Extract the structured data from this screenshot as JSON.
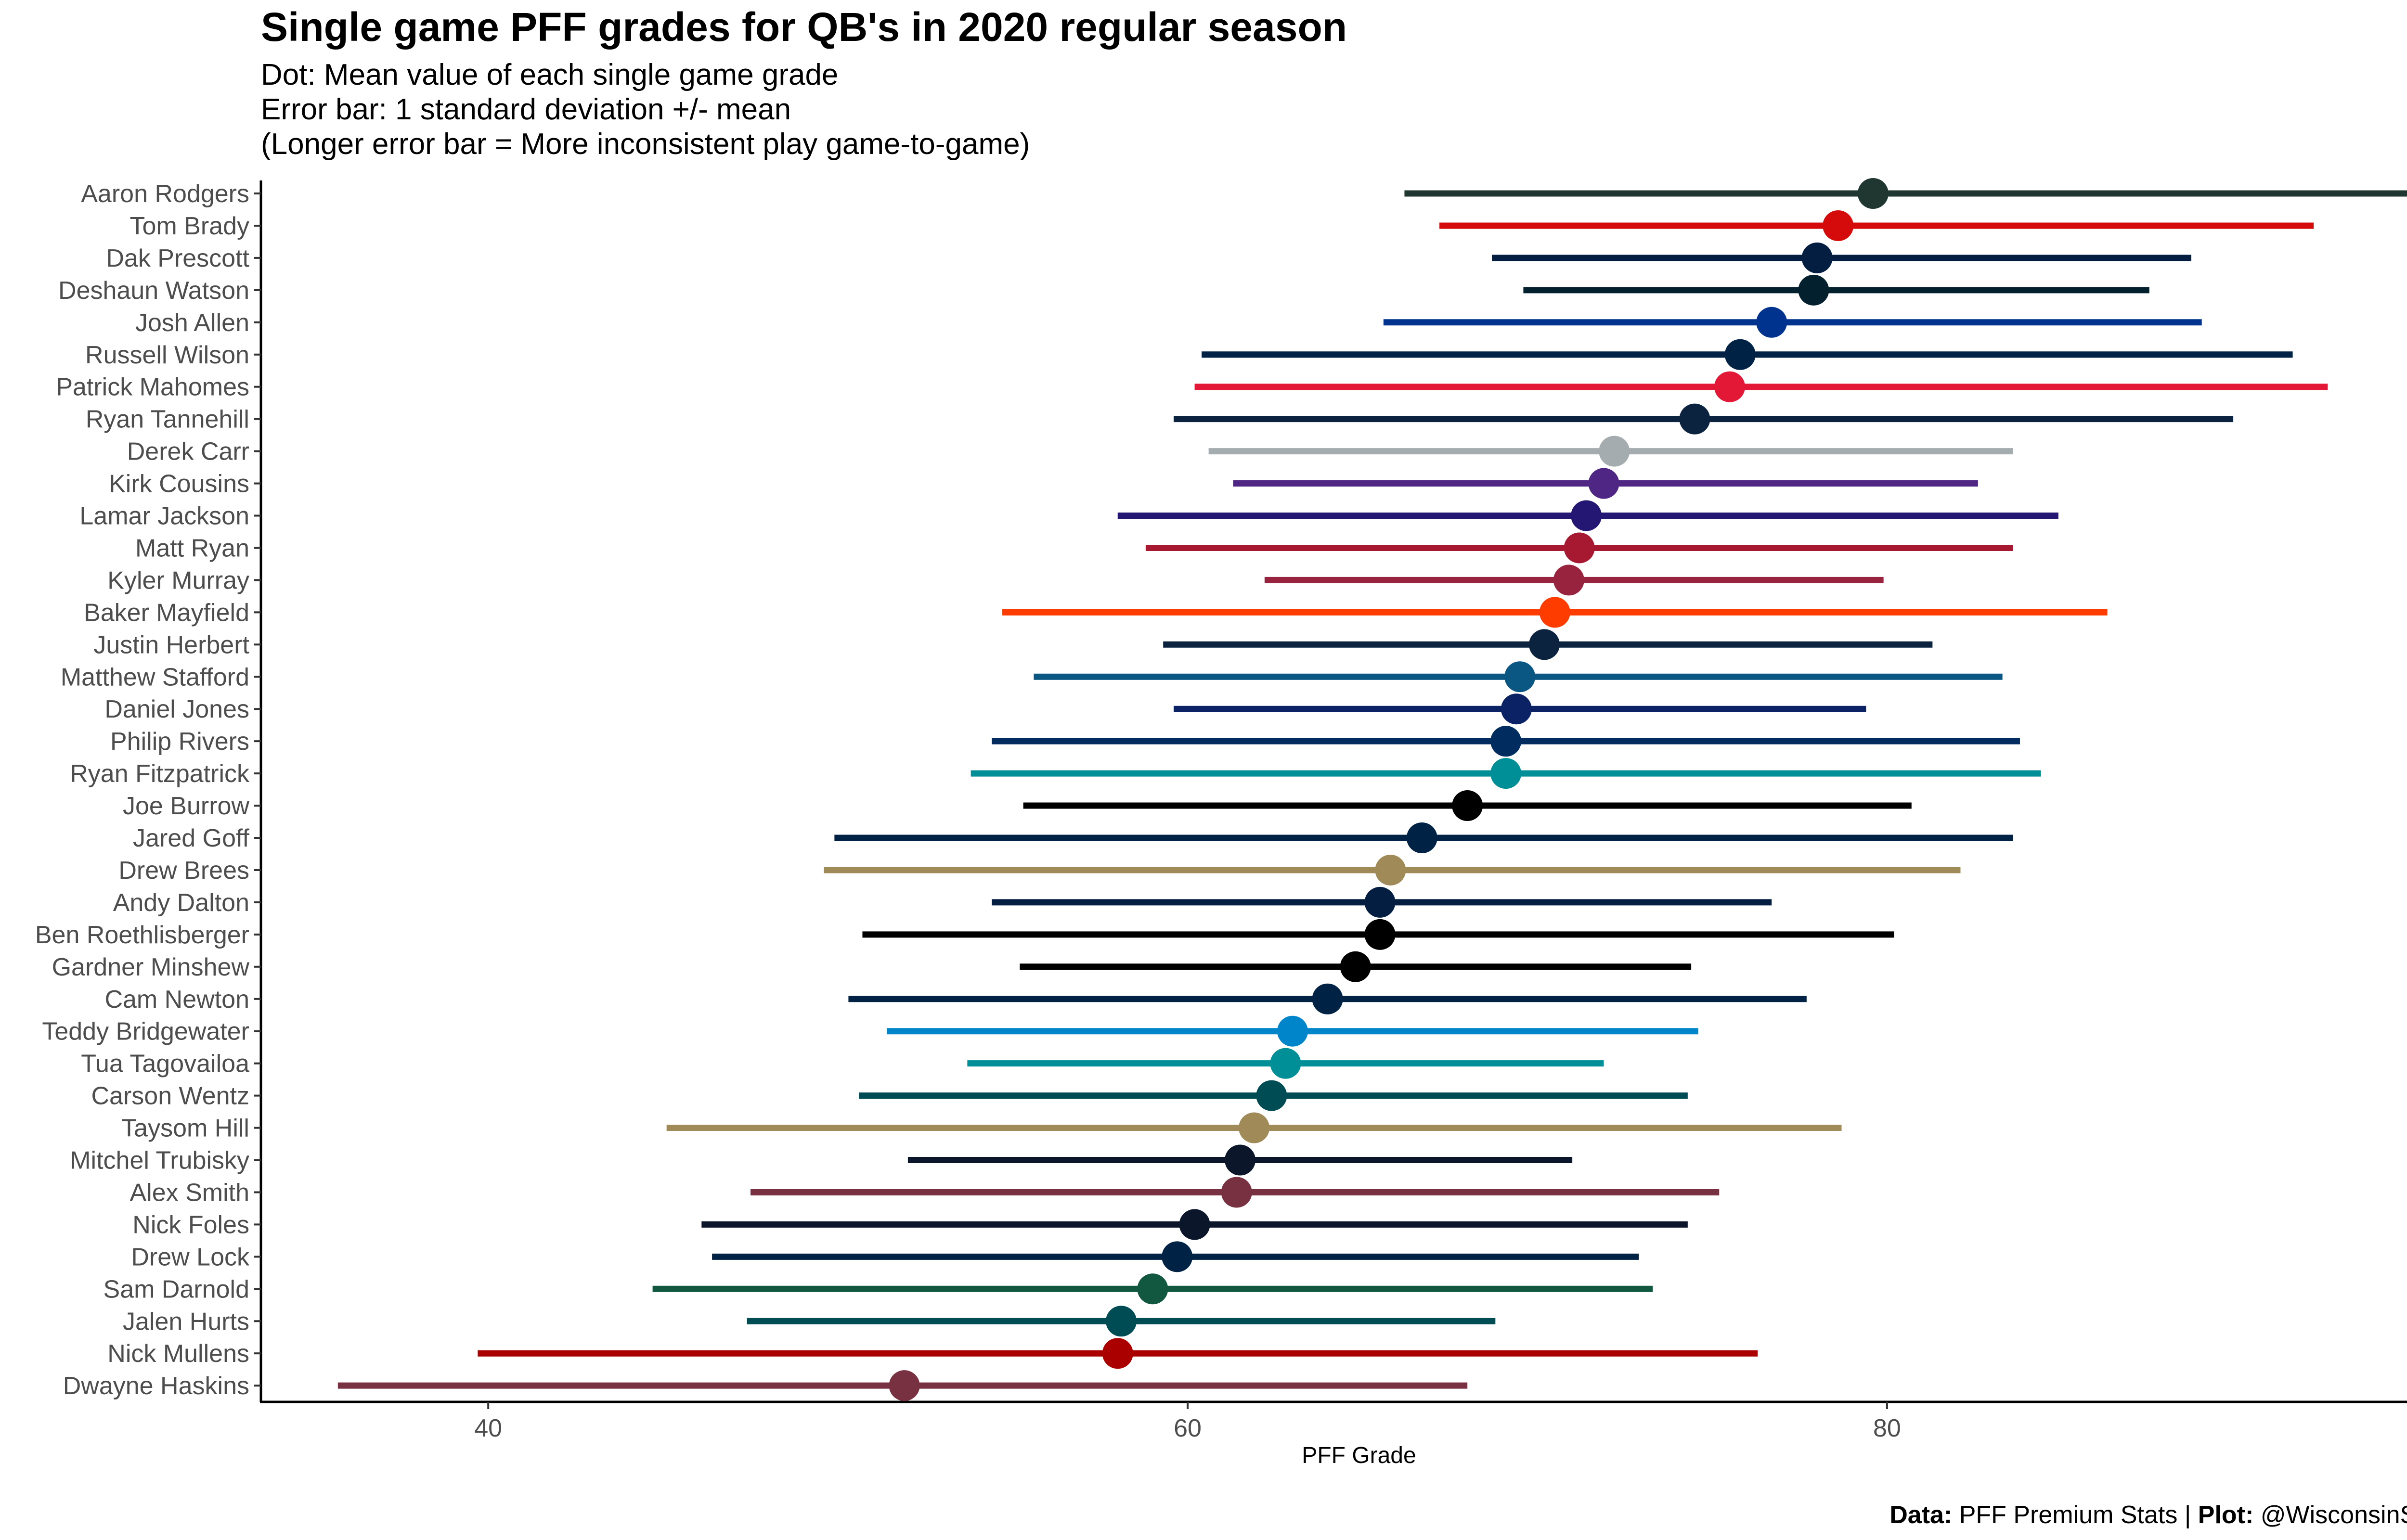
{
  "header": {
    "title": "Single game PFF grades for QB's in 2020 regular season",
    "subtitle_1": "Dot: Mean value of each single game grade",
    "subtitle_2": "Error bar: 1 standard deviation +/- mean",
    "subtitle_3": "(Longer error bar = More inconsistent play game-to-game)"
  },
  "caption": {
    "data_label": "Data:",
    "data_value": "PFF Premium Stats",
    "separator": "|",
    "plot_label": "Plot:",
    "plot_value": "@WisconsinStats"
  },
  "chart_data": {
    "type": "dot-errorbar",
    "xlabel": "PFF Grade",
    "ylabel": "",
    "xlim": [
      33.5,
      96.3
    ],
    "x_ticks": [
      40,
      60,
      80
    ],
    "grid": false,
    "legend": "none",
    "series": [
      {
        "name": "Aaron Rodgers",
        "mean": 79.6,
        "low": 66.2,
        "high": 95.2,
        "color": "#203731"
      },
      {
        "name": "Tom Brady",
        "mean": 78.6,
        "low": 67.2,
        "high": 92.2,
        "color": "#D50A0A"
      },
      {
        "name": "Dak Prescott",
        "mean": 78.0,
        "low": 68.7,
        "high": 88.7,
        "color": "#041E42"
      },
      {
        "name": "Deshaun Watson",
        "mean": 77.9,
        "low": 69.6,
        "high": 87.5,
        "color": "#03202F"
      },
      {
        "name": "Josh Allen",
        "mean": 76.7,
        "low": 65.6,
        "high": 89.0,
        "color": "#00338D"
      },
      {
        "name": "Russell Wilson",
        "mean": 75.8,
        "low": 60.4,
        "high": 91.6,
        "color": "#002244"
      },
      {
        "name": "Patrick Mahomes",
        "mean": 75.5,
        "low": 60.2,
        "high": 92.6,
        "color": "#E31837"
      },
      {
        "name": "Ryan Tannehill",
        "mean": 74.5,
        "low": 59.6,
        "high": 89.9,
        "color": "#0C2340"
      },
      {
        "name": "Derek Carr",
        "mean": 72.2,
        "low": 60.6,
        "high": 83.6,
        "color": "#A5ACAF"
      },
      {
        "name": "Kirk Cousins",
        "mean": 71.9,
        "low": 61.3,
        "high": 82.6,
        "color": "#4F2683"
      },
      {
        "name": "Lamar Jackson",
        "mean": 71.4,
        "low": 58.0,
        "high": 84.9,
        "color": "#241773"
      },
      {
        "name": "Matt Ryan",
        "mean": 71.2,
        "low": 58.8,
        "high": 83.6,
        "color": "#A71930"
      },
      {
        "name": "Kyler Murray",
        "mean": 70.9,
        "low": 62.2,
        "high": 79.9,
        "color": "#97233F"
      },
      {
        "name": "Baker Mayfield",
        "mean": 70.5,
        "low": 54.7,
        "high": 86.3,
        "color": "#FF3C00"
      },
      {
        "name": "Justin Herbert",
        "mean": 70.2,
        "low": 59.3,
        "high": 81.3,
        "color": "#0C2340"
      },
      {
        "name": "Matthew Stafford",
        "mean": 69.5,
        "low": 55.6,
        "high": 83.3,
        "color": "#0A5784"
      },
      {
        "name": "Daniel Jones",
        "mean": 69.4,
        "low": 59.6,
        "high": 79.4,
        "color": "#0B2265"
      },
      {
        "name": "Philip Rivers",
        "mean": 69.1,
        "low": 54.4,
        "high": 83.8,
        "color": "#002C5F"
      },
      {
        "name": "Ryan Fitzpatrick",
        "mean": 69.1,
        "low": 53.8,
        "high": 84.4,
        "color": "#008E97"
      },
      {
        "name": "Joe Burrow",
        "mean": 68.0,
        "low": 55.3,
        "high": 80.7,
        "color": "#000000"
      },
      {
        "name": "Jared Goff",
        "mean": 66.7,
        "low": 49.9,
        "high": 83.6,
        "color": "#002244"
      },
      {
        "name": "Drew Brees",
        "mean": 65.8,
        "low": 49.6,
        "high": 82.1,
        "color": "#A08A58"
      },
      {
        "name": "Andy Dalton",
        "mean": 65.5,
        "low": 54.4,
        "high": 76.7,
        "color": "#041E42"
      },
      {
        "name": "Ben Roethlisberger",
        "mean": 65.5,
        "low": 50.7,
        "high": 80.2,
        "color": "#000000"
      },
      {
        "name": "Gardner Minshew",
        "mean": 64.8,
        "low": 55.2,
        "high": 74.4,
        "color": "#000000"
      },
      {
        "name": "Cam Newton",
        "mean": 64.0,
        "low": 50.3,
        "high": 77.7,
        "color": "#002244"
      },
      {
        "name": "Teddy Bridgewater",
        "mean": 63.0,
        "low": 51.4,
        "high": 74.6,
        "color": "#0085CA"
      },
      {
        "name": "Tua Tagovailoa",
        "mean": 62.8,
        "low": 53.7,
        "high": 71.9,
        "color": "#008E97"
      },
      {
        "name": "Carson Wentz",
        "mean": 62.4,
        "low": 50.6,
        "high": 74.3,
        "color": "#004C54"
      },
      {
        "name": "Taysom Hill",
        "mean": 61.9,
        "low": 45.1,
        "high": 78.7,
        "color": "#A08A58"
      },
      {
        "name": "Mitchel Trubisky",
        "mean": 61.5,
        "low": 52.0,
        "high": 71.0,
        "color": "#0B162A"
      },
      {
        "name": "Alex Smith",
        "mean": 61.4,
        "low": 47.5,
        "high": 75.2,
        "color": "#773141"
      },
      {
        "name": "Nick Foles",
        "mean": 60.2,
        "low": 46.1,
        "high": 74.3,
        "color": "#0B162A"
      },
      {
        "name": "Drew Lock",
        "mean": 59.7,
        "low": 46.4,
        "high": 72.9,
        "color": "#002244"
      },
      {
        "name": "Sam Darnold",
        "mean": 59.0,
        "low": 44.7,
        "high": 73.3,
        "color": "#125740"
      },
      {
        "name": "Jalen Hurts",
        "mean": 58.1,
        "low": 47.4,
        "high": 68.8,
        "color": "#004C54"
      },
      {
        "name": "Nick Mullens",
        "mean": 58.0,
        "low": 39.7,
        "high": 76.3,
        "color": "#AA0000"
      },
      {
        "name": "Dwayne Haskins",
        "mean": 51.9,
        "low": 35.7,
        "high": 68.0,
        "color": "#773141"
      }
    ]
  }
}
